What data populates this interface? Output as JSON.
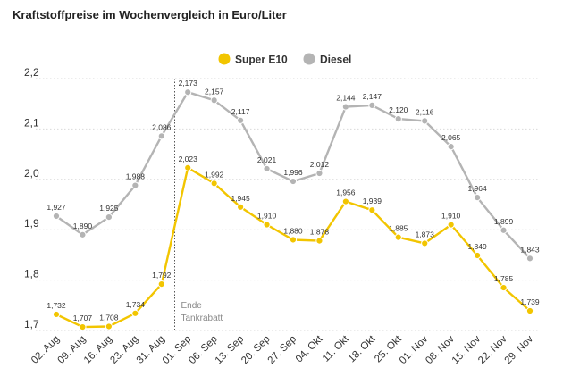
{
  "chart_data": {
    "type": "line",
    "title": "Kraftstoffpreise im Wochenvergleich in Euro/Liter",
    "xlabel": "",
    "ylabel": "",
    "categories": [
      "02. Aug",
      "09. Aug",
      "16. Aug",
      "23. Aug",
      "31. Aug",
      "01. Sep",
      "06. Sep",
      "13. Sep",
      "20. Sep",
      "27. Sep",
      "04. Okt",
      "11. Okt",
      "18. Okt",
      "25. Okt",
      "01. Nov",
      "08. Nov",
      "15. Nov",
      "22. Nov",
      "29. Nov"
    ],
    "series": [
      {
        "name": "Super E10",
        "color": "#f2c500",
        "values": [
          1.732,
          1.707,
          1.708,
          1.734,
          1.792,
          2.023,
          1.992,
          1.945,
          1.91,
          1.88,
          1.878,
          1.956,
          1.939,
          1.885,
          1.873,
          1.91,
          1.849,
          1.785,
          1.739
        ],
        "labels": [
          "1,732",
          "1,707",
          "1,708",
          "1,734",
          "1,792",
          "2,023",
          "1,992",
          "1,945",
          "1,910",
          "1,880",
          "1,878",
          "1,956",
          "1,939",
          "1,885",
          "1,873",
          "1,910",
          "1,849",
          "1,785",
          "1,739"
        ]
      },
      {
        "name": "Diesel",
        "color": "#b4b4b4",
        "values": [
          1.927,
          1.89,
          1.925,
          1.988,
          2.086,
          2.173,
          2.157,
          2.117,
          2.021,
          1.996,
          2.012,
          2.144,
          2.147,
          2.12,
          2.116,
          2.065,
          1.964,
          1.899,
          1.843
        ],
        "labels": [
          "1,927",
          "1,890",
          "1,925",
          "1,988",
          "2,086",
          "2,173",
          "2,157",
          "2,117",
          "2,021",
          "1,996",
          "2,012",
          "2,144",
          "2,147",
          "2,120",
          "2,116",
          "2,065",
          "1,964",
          "1,899",
          "1,843"
        ]
      }
    ],
    "ylim": [
      1.7,
      2.2
    ],
    "yticks": [
      1.7,
      1.8,
      1.9,
      2.0,
      2.1,
      2.2
    ],
    "ytick_labels": [
      "1,7",
      "1,8",
      "1,9",
      "2,0",
      "2,1",
      "2,2"
    ],
    "grid": true,
    "legend_position": "top-center",
    "annotation": {
      "after_category": "31. Aug",
      "lines": [
        "Ende",
        "Tankrabatt"
      ]
    }
  }
}
